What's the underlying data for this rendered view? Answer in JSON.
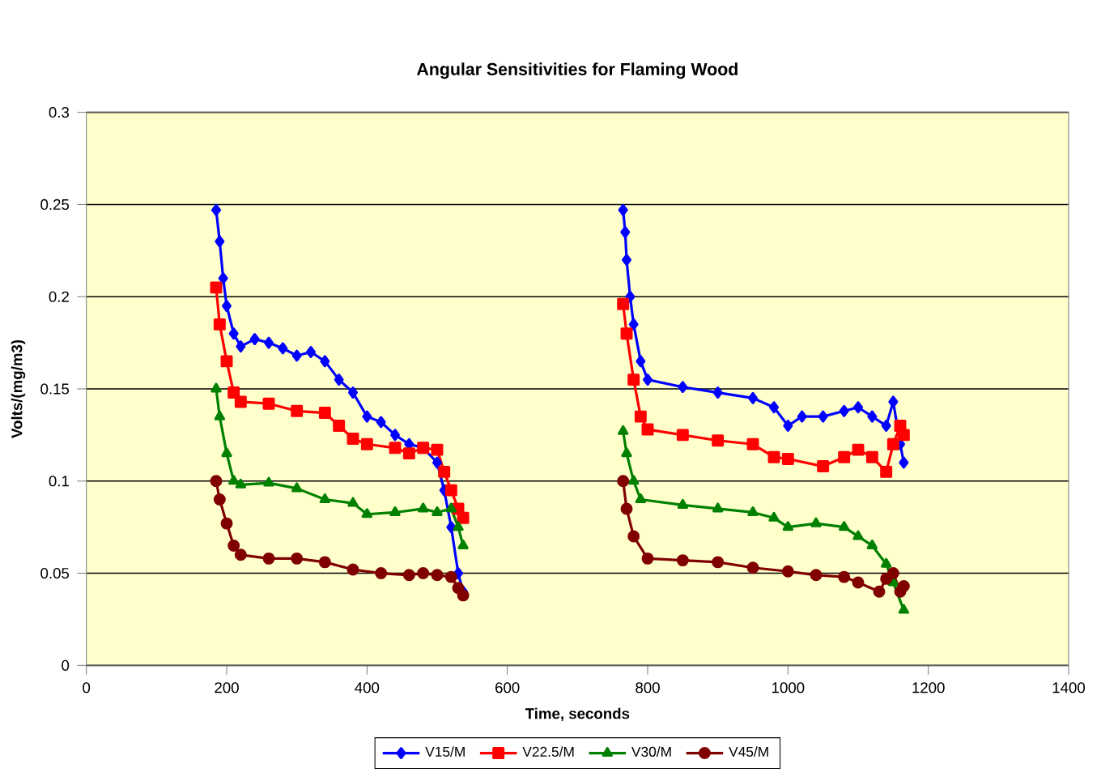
{
  "chart_data": {
    "type": "line",
    "title": "Angular Sensitivities for Flaming Wood",
    "xlabel": "Time, seconds",
    "ylabel": "Volts/(mg/m3)",
    "xlim": [
      0,
      1400
    ],
    "xticks": [
      0,
      200,
      400,
      600,
      800,
      1000,
      1200,
      1400
    ],
    "ylim": [
      0,
      0.3
    ],
    "yticks": [
      0,
      0.05,
      0.1,
      0.15,
      0.2,
      0.25,
      0.3
    ],
    "grid": "y",
    "legend": "bottom",
    "line_style": "solid",
    "series": [
      {
        "name": "V15/M",
        "color": "#0000ff",
        "marker": "diamond",
        "x": [
          185,
          190,
          195,
          200,
          210,
          220,
          240,
          260,
          280,
          300,
          320,
          340,
          360,
          380,
          400,
          420,
          440,
          460,
          480,
          500,
          510,
          520,
          530,
          537,
          null,
          765,
          768,
          770,
          775,
          780,
          790,
          800,
          850,
          900,
          950,
          980,
          1000,
          1020,
          1050,
          1080,
          1100,
          1120,
          1140,
          1150,
          1160,
          1165
        ],
        "values": [
          0.247,
          0.23,
          0.21,
          0.195,
          0.18,
          0.173,
          0.177,
          0.175,
          0.172,
          0.168,
          0.17,
          0.165,
          0.155,
          0.148,
          0.135,
          0.132,
          0.125,
          0.12,
          0.118,
          0.11,
          0.095,
          0.075,
          0.05,
          0.04,
          null,
          0.247,
          0.235,
          0.22,
          0.2,
          0.185,
          0.165,
          0.155,
          0.151,
          0.148,
          0.145,
          0.14,
          0.13,
          0.135,
          0.135,
          0.138,
          0.14,
          0.135,
          0.13,
          0.143,
          0.12,
          0.11
        ]
      },
      {
        "name": "V22.5/M",
        "color": "#ff0000",
        "marker": "square",
        "x": [
          185,
          190,
          200,
          210,
          220,
          260,
          300,
          340,
          360,
          380,
          400,
          440,
          460,
          480,
          500,
          510,
          520,
          530,
          537,
          null,
          765,
          770,
          780,
          790,
          800,
          850,
          900,
          950,
          980,
          1000,
          1050,
          1080,
          1100,
          1120,
          1140,
          1150,
          1160,
          1165
        ],
        "values": [
          0.205,
          0.185,
          0.165,
          0.148,
          0.143,
          0.142,
          0.138,
          0.137,
          0.13,
          0.123,
          0.12,
          0.118,
          0.115,
          0.118,
          0.117,
          0.105,
          0.095,
          0.085,
          0.08,
          null,
          0.196,
          0.18,
          0.155,
          0.135,
          0.128,
          0.125,
          0.122,
          0.12,
          0.113,
          0.112,
          0.108,
          0.113,
          0.117,
          0.113,
          0.105,
          0.12,
          0.13,
          0.125
        ]
      },
      {
        "name": "V30/M",
        "color": "#008000",
        "marker": "triangle",
        "x": [
          185,
          190,
          200,
          210,
          220,
          260,
          300,
          340,
          380,
          400,
          440,
          480,
          500,
          520,
          530,
          537,
          null,
          765,
          770,
          780,
          790,
          850,
          900,
          950,
          980,
          1000,
          1040,
          1080,
          1100,
          1120,
          1140,
          1150,
          1165
        ],
        "values": [
          0.15,
          0.135,
          0.115,
          0.1,
          0.098,
          0.099,
          0.096,
          0.09,
          0.088,
          0.082,
          0.083,
          0.085,
          0.083,
          0.085,
          0.075,
          0.065,
          null,
          0.127,
          0.115,
          0.1,
          0.09,
          0.087,
          0.085,
          0.083,
          0.08,
          0.075,
          0.077,
          0.075,
          0.07,
          0.065,
          0.055,
          0.045,
          0.03
        ]
      },
      {
        "name": "V45/M",
        "color": "#800000",
        "marker": "circle",
        "x": [
          185,
          190,
          200,
          210,
          220,
          260,
          300,
          340,
          380,
          420,
          460,
          480,
          500,
          520,
          530,
          537,
          null,
          765,
          770,
          780,
          800,
          850,
          900,
          950,
          1000,
          1040,
          1080,
          1100,
          1130,
          1140,
          1150,
          1160,
          1165
        ],
        "values": [
          0.1,
          0.09,
          0.077,
          0.065,
          0.06,
          0.058,
          0.058,
          0.056,
          0.052,
          0.05,
          0.049,
          0.05,
          0.049,
          0.048,
          0.042,
          0.038,
          null,
          0.1,
          0.085,
          0.07,
          0.058,
          0.057,
          0.056,
          0.053,
          0.051,
          0.049,
          0.048,
          0.045,
          0.04,
          0.047,
          0.05,
          0.04,
          0.043
        ]
      }
    ]
  }
}
